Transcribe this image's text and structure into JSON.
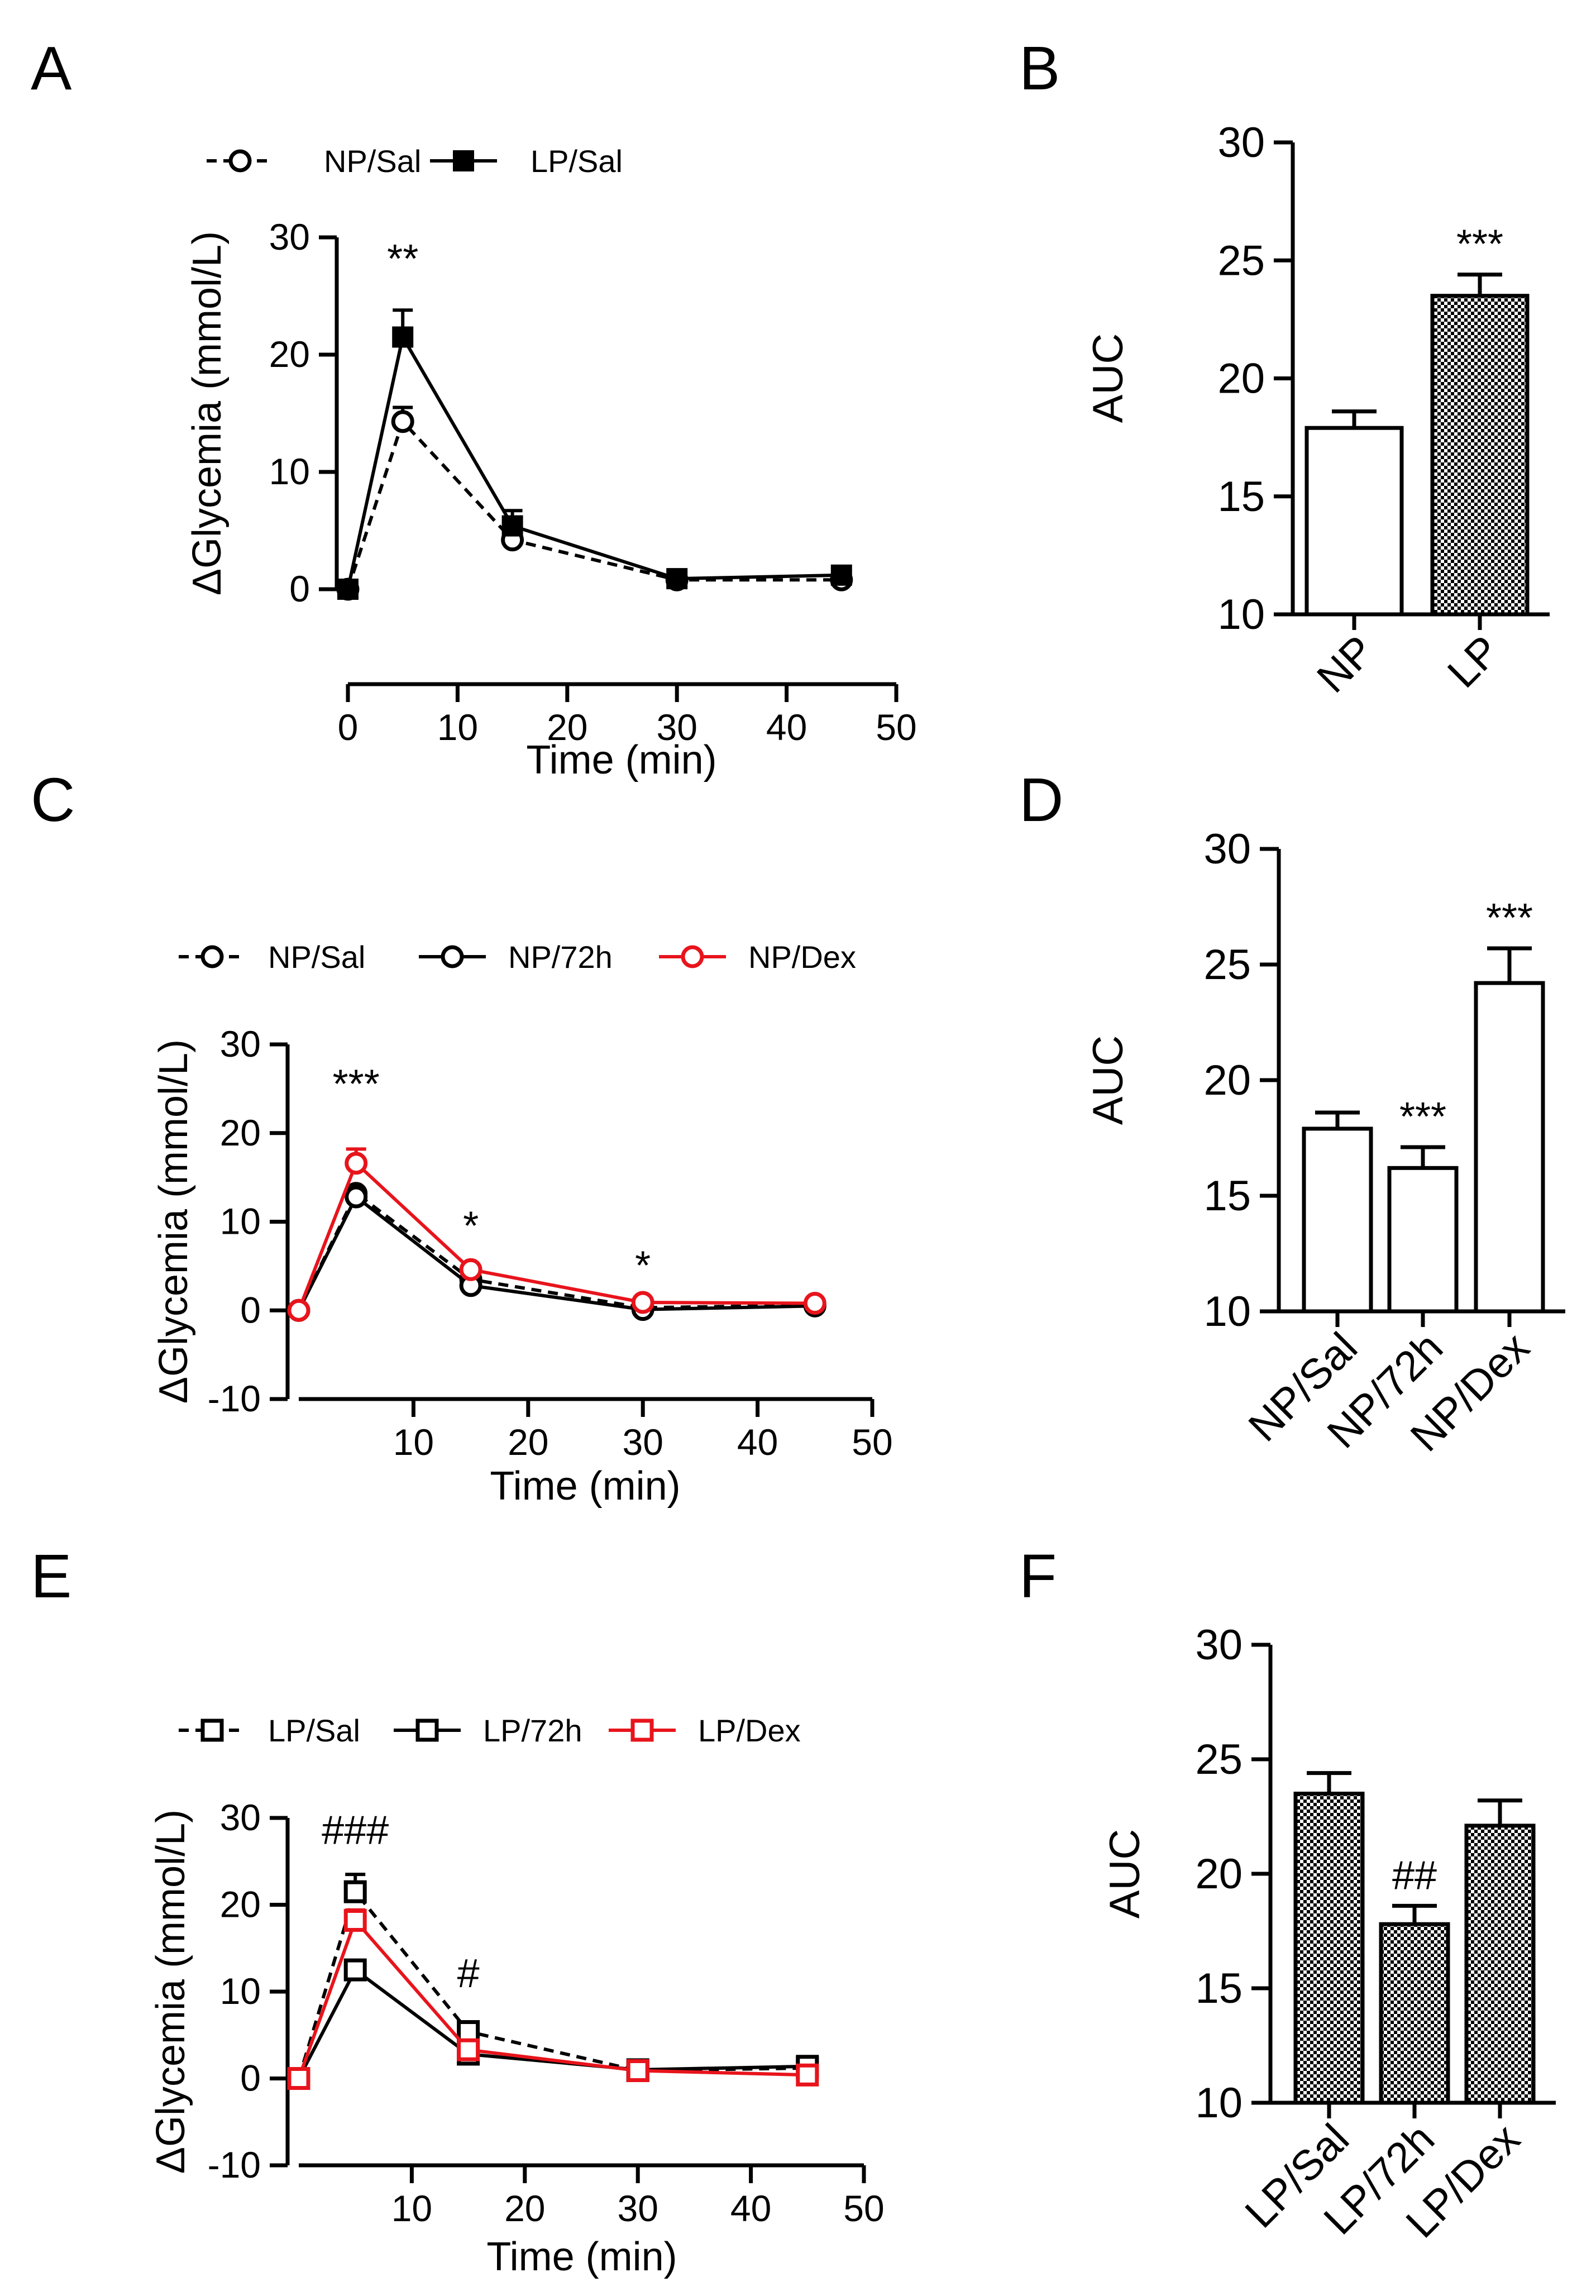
{
  "colors": {
    "black": "#000000",
    "red": "#e8141c",
    "white": "#ffffff"
  },
  "chart_data": [
    {
      "panel": "A",
      "type": "line",
      "xlabel": "Time (min)",
      "ylabel": "ΔGlycemia (mmol/L)",
      "xlim": [
        0,
        50
      ],
      "ylim": [
        0,
        30
      ],
      "xticks": [
        "0",
        "10",
        "20",
        "30",
        "40",
        "50"
      ],
      "yticks": [
        "0",
        "10",
        "20",
        "30"
      ],
      "series": [
        {
          "name": "NP/Sal",
          "marker": "circle-open",
          "line": "dashed",
          "color": "#000000",
          "x": [
            0,
            5,
            15,
            30,
            45
          ],
          "y": [
            0,
            14.3,
            4.2,
            0.8,
            0.8
          ],
          "err": [
            0,
            1.2,
            0,
            0,
            0
          ]
        },
        {
          "name": "LP/Sal",
          "marker": "square-filled",
          "line": "solid",
          "color": "#000000",
          "x": [
            0,
            5,
            15,
            30,
            45
          ],
          "y": [
            0,
            21.5,
            5.4,
            0.9,
            1.2
          ],
          "err": [
            0,
            2.3,
            1.3,
            0.3,
            0.2
          ]
        }
      ],
      "annotations": [
        {
          "text": "**",
          "x": 5,
          "y": 27
        }
      ]
    },
    {
      "panel": "B",
      "type": "bar",
      "ylabel": "AUC",
      "ylim": [
        10,
        30
      ],
      "yticks": [
        "10",
        "15",
        "20",
        "25",
        "30"
      ],
      "categories": [
        "NP",
        "LP"
      ],
      "values": [
        17.9,
        23.5
      ],
      "err": [
        0.7,
        0.9
      ],
      "fills": [
        "white",
        "checker"
      ],
      "annotations": [
        {
          "text": "***",
          "bar": 1
        }
      ]
    },
    {
      "panel": "C",
      "type": "line",
      "xlabel": "Time (min)",
      "ylabel": "ΔGlycemia (mmol/L)",
      "xlim": [
        0,
        50
      ],
      "ylim": [
        -10,
        30
      ],
      "xticks": [
        "10",
        "20",
        "30",
        "40",
        "50"
      ],
      "yticks": [
        "-10",
        "0",
        "10",
        "20",
        "30"
      ],
      "series": [
        {
          "name": "NP/Sal",
          "marker": "circle-open",
          "line": "dashed",
          "color": "#000000",
          "x": [
            0,
            5,
            15,
            30,
            45
          ],
          "y": [
            0,
            13.2,
            3.5,
            0.3,
            0.6
          ],
          "err": [
            0,
            0,
            0,
            0,
            0
          ]
        },
        {
          "name": "NP/72h",
          "marker": "circle-open",
          "line": "solid",
          "color": "#000000",
          "x": [
            0,
            5,
            15,
            30,
            45
          ],
          "y": [
            0,
            12.8,
            2.8,
            0.1,
            0.5
          ],
          "err": [
            0,
            0,
            0,
            0,
            0
          ]
        },
        {
          "name": "NP/Dex",
          "marker": "circle-open",
          "line": "solid",
          "color": "#e8141c",
          "x": [
            0,
            5,
            15,
            30,
            45
          ],
          "y": [
            0,
            16.6,
            4.6,
            0.9,
            0.8
          ],
          "err": [
            0,
            1.6,
            0,
            0,
            0
          ]
        }
      ],
      "annotations": [
        {
          "text": "***",
          "x": 5,
          "y": 24
        },
        {
          "text": "*",
          "x": 15,
          "y": 8
        },
        {
          "text": "*",
          "x": 30,
          "y": 3.5
        }
      ]
    },
    {
      "panel": "D",
      "type": "bar",
      "ylabel": "AUC",
      "ylim": [
        10,
        30
      ],
      "yticks": [
        "10",
        "15",
        "20",
        "25",
        "30"
      ],
      "categories": [
        "NP/Sal",
        "NP/72h",
        "NP/Dex"
      ],
      "values": [
        17.9,
        16.2,
        24.2
      ],
      "err": [
        0.7,
        0.9,
        1.5
      ],
      "fills": [
        "white",
        "white",
        "white"
      ],
      "annotations": [
        {
          "text": "***",
          "bar": 1
        },
        {
          "text": "***",
          "bar": 2
        }
      ]
    },
    {
      "panel": "E",
      "type": "line",
      "xlabel": "Time (min)",
      "ylabel": "ΔGlycemia (mmol/L)",
      "xlim": [
        0,
        50
      ],
      "ylim": [
        -10,
        30
      ],
      "xticks": [
        "10",
        "20",
        "30",
        "40",
        "50"
      ],
      "yticks": [
        "-10",
        "0",
        "10",
        "20",
        "30"
      ],
      "series": [
        {
          "name": "LP/Sal",
          "marker": "square-open",
          "line": "dashed",
          "color": "#000000",
          "x": [
            0,
            5,
            15,
            30,
            45
          ],
          "y": [
            0,
            21.5,
            5.4,
            0.9,
            1.2
          ],
          "err": [
            0,
            2.0,
            1.0,
            0,
            0
          ]
        },
        {
          "name": "LP/72h",
          "marker": "square-open",
          "line": "solid",
          "color": "#000000",
          "x": [
            0,
            5,
            15,
            30,
            45
          ],
          "y": [
            0,
            12.5,
            2.8,
            1.0,
            1.4
          ],
          "err": [
            0,
            0,
            0,
            0,
            0
          ]
        },
        {
          "name": "LP/Dex",
          "marker": "square-open",
          "line": "solid",
          "color": "#e8141c",
          "x": [
            0,
            5,
            15,
            30,
            45
          ],
          "y": [
            0,
            18.2,
            3.3,
            0.9,
            0.4
          ],
          "err": [
            0,
            1.2,
            0,
            0,
            0
          ]
        }
      ],
      "annotations": [
        {
          "text": "###",
          "x": 5,
          "y": 27
        },
        {
          "text": "#",
          "x": 15,
          "y": 10.5
        }
      ]
    },
    {
      "panel": "F",
      "type": "bar",
      "ylabel": "AUC",
      "ylim": [
        10,
        30
      ],
      "yticks": [
        "10",
        "15",
        "20",
        "25",
        "30"
      ],
      "categories": [
        "LP/Sal",
        "LP/72h",
        "LP/Dex"
      ],
      "values": [
        23.5,
        17.8,
        22.1
      ],
      "err": [
        0.9,
        0.8,
        1.1
      ],
      "fills": [
        "checker",
        "checker",
        "checker"
      ],
      "annotations": [
        {
          "text": "##",
          "bar": 1
        }
      ]
    }
  ]
}
